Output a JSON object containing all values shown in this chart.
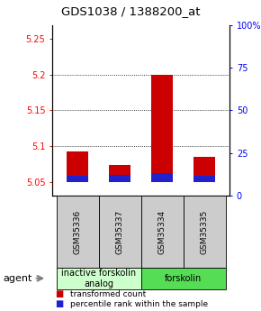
{
  "title": "GDS1038 / 1388200_at",
  "samples": [
    "GSM35336",
    "GSM35337",
    "GSM35334",
    "GSM35335"
  ],
  "red_values": [
    5.093,
    5.074,
    5.2,
    5.085
  ],
  "blue_values": [
    5.058,
    5.059,
    5.062,
    5.058
  ],
  "red_base": 5.05,
  "ylim_left": [
    5.03,
    5.27
  ],
  "ylim_right": [
    0,
    100
  ],
  "yticks_left": [
    5.05,
    5.1,
    5.15,
    5.2,
    5.25
  ],
  "ytick_labels_left": [
    "5.05",
    "5.1",
    "5.15",
    "5.2",
    "5.25"
  ],
  "yticks_right": [
    0,
    25,
    50,
    75,
    100
  ],
  "ytick_labels_right": [
    "0",
    "25",
    "50",
    "75",
    "100%"
  ],
  "hgrid_vals": [
    5.1,
    5.15,
    5.2
  ],
  "groups": [
    {
      "label": "inactive forskolin\nanalog",
      "start": 0,
      "end": 2,
      "color": "#ccffcc"
    },
    {
      "label": "forskolin",
      "start": 2,
      "end": 4,
      "color": "#55dd55"
    }
  ],
  "legend_red": "transformed count",
  "legend_blue": "percentile rank within the sample",
  "bar_width": 0.5,
  "red_color": "#cc0000",
  "blue_color": "#2222cc",
  "sample_box_color": "#cccccc",
  "title_fontsize": 9.5,
  "tick_fontsize": 7,
  "sample_fontsize": 6.5,
  "group_fontsize": 7,
  "legend_fontsize": 6.5,
  "agent_fontsize": 8
}
